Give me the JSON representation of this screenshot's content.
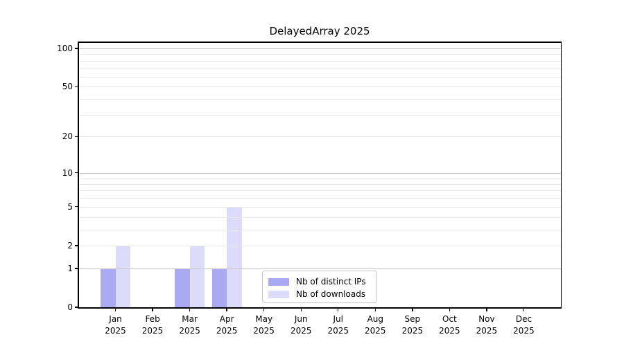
{
  "page": {
    "background": "#ffffff"
  },
  "chart_data": {
    "type": "bar",
    "title": "DelayedArray 2025",
    "x": {
      "months": [
        "Jan",
        "Feb",
        "Mar",
        "Apr",
        "May",
        "Jun",
        "Jul",
        "Aug",
        "Sep",
        "Oct",
        "Nov",
        "Dec"
      ],
      "year": "2025"
    },
    "y": {
      "scale": "log1p",
      "tick_values": [
        0,
        1,
        2,
        5,
        10,
        20,
        50,
        100
      ],
      "tick_labels": [
        "0",
        "1",
        "2",
        "5",
        "10",
        "20",
        "50",
        "100"
      ],
      "major_grid": [
        1,
        10,
        100
      ],
      "minor_grid": [
        2,
        3,
        4,
        5,
        6,
        7,
        8,
        9,
        20,
        30,
        40,
        50,
        60,
        70,
        80,
        90
      ],
      "top_value": 100
    },
    "series": [
      {
        "name": "Nb of distinct IPs",
        "color": "#aaaaf2",
        "values": [
          1,
          0,
          1,
          1,
          0,
          0,
          0,
          0,
          0,
          0,
          0,
          0
        ]
      },
      {
        "name": "Nb of downloads",
        "color": "#dcdcfa",
        "values": [
          2,
          0,
          2,
          5,
          0,
          0,
          0,
          0,
          0,
          0,
          0,
          0
        ]
      }
    ],
    "legend": {
      "position": "inside-bottom-center",
      "border_color": "#c8c8c8"
    },
    "grid_on": true,
    "grid_above_bars": true
  }
}
